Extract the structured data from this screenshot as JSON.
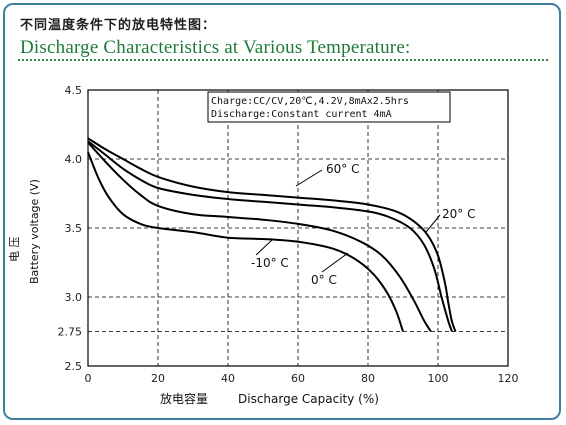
{
  "header": {
    "title_cn": "不同温度条件下的放电特性图：",
    "title_en": "Discharge Characteristics at Various Temperature:"
  },
  "chart_data": {
    "type": "line",
    "xlabel_cn": "放电容量",
    "xlabel": "Discharge Capacity (%)",
    "ylabel_cn": "电 压",
    "ylabel": "Battery voltage (V)",
    "xlim": [
      0,
      120
    ],
    "ylim": [
      2.5,
      4.5
    ],
    "x_ticks": [
      "0",
      "20",
      "40",
      "60",
      "80",
      "100",
      "120"
    ],
    "y_ticks": [
      "2.5",
      "2.75",
      "3.0",
      "3.5",
      "4.0",
      "4.5"
    ],
    "grid": true,
    "annotation": [
      "Charge:CC/CV,20℃,4.2V,8mAx2.5hrs",
      "Discharge:Constant current 4mA"
    ],
    "series": [
      {
        "name": "60° C",
        "x": [
          0,
          5,
          10,
          15,
          20,
          30,
          40,
          50,
          60,
          70,
          80,
          88,
          93,
          97,
          100,
          102,
          103,
          104,
          105
        ],
        "y": [
          4.15,
          4.07,
          4.0,
          3.93,
          3.87,
          3.8,
          3.76,
          3.74,
          3.72,
          3.7,
          3.67,
          3.62,
          3.55,
          3.45,
          3.3,
          3.1,
          2.95,
          2.82,
          2.75
        ]
      },
      {
        "name": "20° C",
        "x": [
          0,
          5,
          10,
          15,
          20,
          30,
          40,
          50,
          60,
          70,
          80,
          86,
          92,
          96,
          99,
          101,
          103,
          104
        ],
        "y": [
          4.13,
          4.03,
          3.93,
          3.85,
          3.79,
          3.74,
          3.71,
          3.69,
          3.67,
          3.65,
          3.62,
          3.58,
          3.5,
          3.38,
          3.2,
          3.0,
          2.82,
          2.75
        ]
      },
      {
        "name": "0° C",
        "x": [
          0,
          5,
          10,
          15,
          20,
          30,
          40,
          50,
          60,
          70,
          78,
          84,
          89,
          93,
          96,
          98
        ],
        "y": [
          4.12,
          3.98,
          3.85,
          3.74,
          3.66,
          3.6,
          3.58,
          3.56,
          3.53,
          3.48,
          3.4,
          3.3,
          3.15,
          2.98,
          2.83,
          2.75
        ]
      },
      {
        "name": "-10° C",
        "x": [
          0,
          3,
          6,
          10,
          15,
          20,
          30,
          40,
          50,
          60,
          70,
          76,
          81,
          85,
          88,
          90
        ],
        "y": [
          4.05,
          3.86,
          3.72,
          3.6,
          3.53,
          3.5,
          3.47,
          3.43,
          3.42,
          3.4,
          3.35,
          3.28,
          3.18,
          3.05,
          2.9,
          2.75
        ]
      }
    ]
  }
}
